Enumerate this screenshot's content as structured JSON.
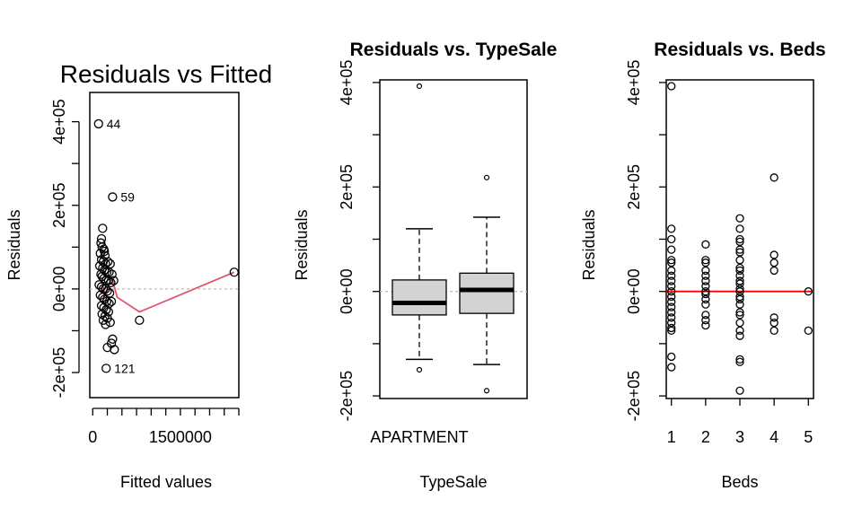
{
  "chart_data": [
    {
      "type": "scatter",
      "title": "Residuals vs Fitted",
      "xlabel": "Fitted values",
      "ylabel": "Residuals",
      "xlim": [
        -50000,
        2500000
      ],
      "ylim": [
        -260000,
        470000
      ],
      "x_ticks": [
        0,
        250000,
        500000,
        750000,
        1000000,
        1250000,
        1500000,
        1750000,
        2000000,
        2250000,
        2500000
      ],
      "x_tick_labels": [
        {
          "value": 0,
          "label": "0"
        },
        {
          "value": 1500000,
          "label": "1500000"
        }
      ],
      "y_ticks": [
        -200000,
        -100000,
        0,
        100000,
        200000,
        300000,
        400000
      ],
      "y_tick_labels": [
        {
          "value": -200000,
          "label": "-2e+05"
        },
        {
          "value": 0,
          "label": "0e+00"
        },
        {
          "value": 200000,
          "label": "2e+05"
        },
        {
          "value": 400000,
          "label": "4e+05"
        }
      ],
      "points": [
        [
          100000,
          395000
        ],
        [
          340000,
          220000
        ],
        [
          230000,
          -190000
        ],
        [
          170000,
          145000
        ],
        [
          150000,
          120000
        ],
        [
          140000,
          110000
        ],
        [
          160000,
          100000
        ],
        [
          190000,
          95000
        ],
        [
          200000,
          90000
        ],
        [
          130000,
          85000
        ],
        [
          210000,
          80000
        ],
        [
          150000,
          70000
        ],
        [
          180000,
          65000
        ],
        [
          220000,
          60000
        ],
        [
          260000,
          65000
        ],
        [
          300000,
          60000
        ],
        [
          120000,
          55000
        ],
        [
          170000,
          50000
        ],
        [
          200000,
          45000
        ],
        [
          240000,
          40000
        ],
        [
          280000,
          40000
        ],
        [
          330000,
          35000
        ],
        [
          140000,
          35000
        ],
        [
          160000,
          30000
        ],
        [
          190000,
          25000
        ],
        [
          230000,
          20000
        ],
        [
          270000,
          20000
        ],
        [
          310000,
          15000
        ],
        [
          360000,
          20000
        ],
        [
          110000,
          10000
        ],
        [
          150000,
          5000
        ],
        [
          180000,
          0
        ],
        [
          220000,
          0
        ],
        [
          250000,
          -5000
        ],
        [
          290000,
          -10000
        ],
        [
          130000,
          -15000
        ],
        [
          170000,
          -20000
        ],
        [
          200000,
          -25000
        ],
        [
          240000,
          -30000
        ],
        [
          280000,
          -35000
        ],
        [
          320000,
          -30000
        ],
        [
          150000,
          -40000
        ],
        [
          190000,
          -45000
        ],
        [
          230000,
          -50000
        ],
        [
          270000,
          -55000
        ],
        [
          160000,
          -60000
        ],
        [
          210000,
          -65000
        ],
        [
          250000,
          -70000
        ],
        [
          180000,
          -75000
        ],
        [
          300000,
          -80000
        ],
        [
          220000,
          -85000
        ],
        [
          800000,
          -75000
        ],
        [
          320000,
          -130000
        ],
        [
          250000,
          -140000
        ],
        [
          370000,
          -145000
        ],
        [
          340000,
          -120000
        ],
        [
          2420000,
          40000
        ]
      ],
      "loess_line": [
        [
          100000,
          30000
        ],
        [
          170000,
          10000
        ],
        [
          220000,
          -20000
        ],
        [
          270000,
          10000
        ],
        [
          330000,
          25000
        ],
        [
          420000,
          -20000
        ],
        [
          800000,
          -55000
        ],
        [
          2420000,
          40000
        ]
      ],
      "reference_line_y": 0,
      "point_labels": [
        {
          "x": 100000,
          "y": 395000,
          "label": "44"
        },
        {
          "x": 340000,
          "y": 220000,
          "label": "59"
        },
        {
          "x": 230000,
          "y": -190000,
          "label": "121"
        }
      ],
      "colors": {
        "points": "#000000",
        "smoother": "#df536b",
        "reference": "#bebebe"
      }
    },
    {
      "type": "box",
      "title": "Residuals vs. TypeSale",
      "xlabel": "TypeSale",
      "ylabel": "Residuals",
      "ylim": [
        -205000,
        405000
      ],
      "y_ticks": [
        -200000,
        -100000,
        0,
        100000,
        200000,
        300000,
        400000
      ],
      "y_tick_labels": [
        {
          "value": -200000,
          "label": "-2e+05"
        },
        {
          "value": 0,
          "label": "0e+00"
        },
        {
          "value": 200000,
          "label": "2e+05"
        },
        {
          "value": 400000,
          "label": "4e+05"
        }
      ],
      "categories": [
        "APARTMENT",
        ""
      ],
      "category_tick_labels": [
        "APARTMENT"
      ],
      "boxes": [
        {
          "lower_whisker": -130000,
          "q1": -45000,
          "median": -22000,
          "q3": 22000,
          "upper_whisker": 120000,
          "outliers": [
            393000,
            -150000
          ]
        },
        {
          "lower_whisker": -140000,
          "q1": -42000,
          "median": 3000,
          "q3": 35000,
          "upper_whisker": 142000,
          "outliers": [
            218000,
            -190000
          ]
        }
      ],
      "reference_line_y": 0,
      "colors": {
        "box_fill": "#d3d3d3",
        "reference": "#bebebe"
      }
    },
    {
      "type": "scatter",
      "title": "Residuals vs. Beds",
      "xlabel": "Beds",
      "ylabel": "Residuals",
      "xlim": [
        0.85,
        5.15
      ],
      "ylim": [
        -205000,
        405000
      ],
      "x_ticks": [
        1,
        2,
        3,
        4,
        5
      ],
      "x_tick_labels": [
        "1",
        "2",
        "3",
        "4",
        "5"
      ],
      "y_ticks": [
        -200000,
        -100000,
        0,
        100000,
        200000,
        300000,
        400000
      ],
      "y_tick_labels": [
        {
          "value": -200000,
          "label": "-2e+05"
        },
        {
          "value": 0,
          "label": "0e+00"
        },
        {
          "value": 200000,
          "label": "2e+05"
        },
        {
          "value": 400000,
          "label": "4e+05"
        }
      ],
      "points": [
        [
          1,
          393000
        ],
        [
          1,
          120000
        ],
        [
          1,
          100000
        ],
        [
          1,
          80000
        ],
        [
          1,
          60000
        ],
        [
          1,
          55000
        ],
        [
          1,
          40000
        ],
        [
          1,
          30000
        ],
        [
          1,
          20000
        ],
        [
          1,
          10000
        ],
        [
          1,
          0
        ],
        [
          1,
          -10000
        ],
        [
          1,
          -20000
        ],
        [
          1,
          -30000
        ],
        [
          1,
          -40000
        ],
        [
          1,
          -50000
        ],
        [
          1,
          -60000
        ],
        [
          1,
          -70000
        ],
        [
          1,
          -75000
        ],
        [
          1,
          -125000
        ],
        [
          1,
          -145000
        ],
        [
          2,
          90000
        ],
        [
          2,
          60000
        ],
        [
          2,
          55000
        ],
        [
          2,
          40000
        ],
        [
          2,
          30000
        ],
        [
          2,
          20000
        ],
        [
          2,
          10000
        ],
        [
          2,
          0
        ],
        [
          2,
          -5000
        ],
        [
          2,
          -15000
        ],
        [
          2,
          -25000
        ],
        [
          2,
          -45000
        ],
        [
          2,
          -55000
        ],
        [
          2,
          -65000
        ],
        [
          3,
          140000
        ],
        [
          3,
          120000
        ],
        [
          3,
          100000
        ],
        [
          3,
          95000
        ],
        [
          3,
          80000
        ],
        [
          3,
          75000
        ],
        [
          3,
          60000
        ],
        [
          3,
          45000
        ],
        [
          3,
          40000
        ],
        [
          3,
          30000
        ],
        [
          3,
          20000
        ],
        [
          3,
          15000
        ],
        [
          3,
          5000
        ],
        [
          3,
          0
        ],
        [
          3,
          -10000
        ],
        [
          3,
          -15000
        ],
        [
          3,
          -25000
        ],
        [
          3,
          -40000
        ],
        [
          3,
          -45000
        ],
        [
          3,
          -60000
        ],
        [
          3,
          -75000
        ],
        [
          3,
          -85000
        ],
        [
          3,
          -130000
        ],
        [
          3,
          -135000
        ],
        [
          3,
          -190000
        ],
        [
          4,
          218000
        ],
        [
          4,
          70000
        ],
        [
          4,
          55000
        ],
        [
          4,
          40000
        ],
        [
          4,
          -50000
        ],
        [
          4,
          -60000
        ],
        [
          4,
          -75000
        ],
        [
          5,
          0
        ],
        [
          5,
          -75000
        ]
      ],
      "fit_line": {
        "y": 0
      },
      "colors": {
        "points": "#000000",
        "fit": "#ff0000"
      }
    }
  ]
}
